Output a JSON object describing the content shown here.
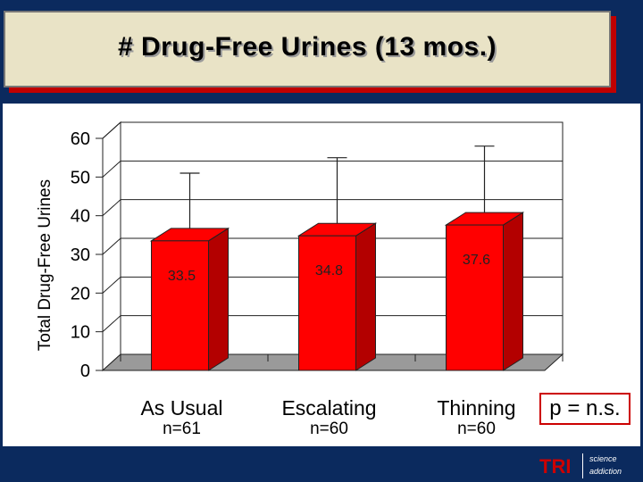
{
  "slide": {
    "title": "# Drug-Free Urines (13 mos.)",
    "pvalue": "p = n.s.",
    "logo": {
      "mark": "TRI",
      "line1": "science",
      "line2": "addiction"
    }
  },
  "chart_data": {
    "type": "bar",
    "title": "# Drug-Free Urines (13 mos.)",
    "ylabel": "Total Drug-Free Urines",
    "xlabel": "",
    "ylim": [
      0,
      60
    ],
    "yticks": [
      0,
      10,
      20,
      30,
      40,
      50,
      60
    ],
    "categories": [
      "As Usual",
      "Escalating",
      "Thinning"
    ],
    "sublabels": [
      "n=61",
      "n=60",
      "n=60"
    ],
    "values": [
      33.5,
      34.8,
      37.6
    ],
    "value_labels": [
      "33.5",
      "34.8",
      "37.6"
    ],
    "error_upper": [
      51,
      55,
      58
    ],
    "grid": true,
    "bar_color": "#ff0000",
    "bar_side_color": "#b30000",
    "floor_color": "#9a9a9a"
  }
}
